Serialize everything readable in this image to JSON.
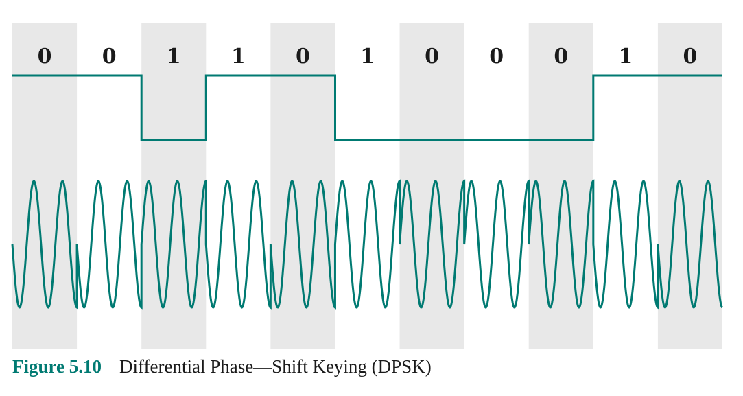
{
  "bits": [
    "0",
    "0",
    "1",
    "1",
    "0",
    "1",
    "0",
    "0",
    "0",
    "1",
    "0"
  ],
  "caption": {
    "label": "Figure 5.10",
    "title": "Differential Phase—Shift Keying (DPSK)"
  },
  "colors": {
    "signal": "#007a72",
    "band": "#e8e8e8",
    "text": "#1a1a1a",
    "background": "#ffffff"
  }
}
